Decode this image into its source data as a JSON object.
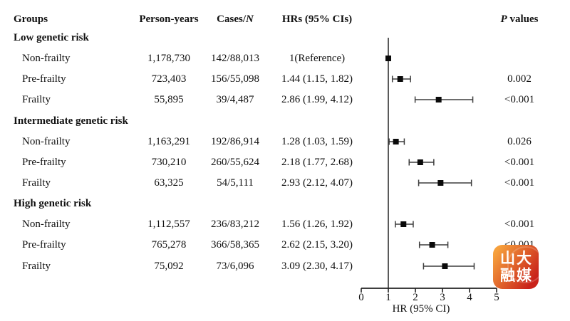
{
  "header": {
    "groups": "Groups",
    "person_years": "Person-years",
    "cases_parts": [
      "Cases/",
      "N"
    ],
    "hrs": "HRs (95% CIs)",
    "p_parts": [
      "P",
      " values"
    ]
  },
  "chart_data": {
    "type": "forest",
    "xlabel": "HR (95% CI)",
    "xlim": [
      0,
      5
    ],
    "xticks": [
      0,
      1,
      2,
      3,
      4,
      5
    ],
    "reference_line_x": 1,
    "groups": [
      {
        "label": "Low genetic risk",
        "rows": [
          {
            "label": "Non-frailty",
            "person_years": "1,178,730",
            "cases_n": "142/88,013",
            "hr_text": "1(Reference)",
            "hr": 1.0,
            "lo": null,
            "hi": null,
            "p": ""
          },
          {
            "label": "Pre-frailty",
            "person_years": "723,403",
            "cases_n": "156/55,098",
            "hr_text": "1.44 (1.15, 1.82)",
            "hr": 1.44,
            "lo": 1.15,
            "hi": 1.82,
            "p": "0.002"
          },
          {
            "label": "Frailty",
            "person_years": "55,895",
            "cases_n": "39/4,487",
            "hr_text": "2.86 (1.99, 4.12)",
            "hr": 2.86,
            "lo": 1.99,
            "hi": 4.12,
            "p": "<0.001"
          }
        ]
      },
      {
        "label": "Intermediate genetic risk",
        "rows": [
          {
            "label": "Non-frailty",
            "person_years": "1,163,291",
            "cases_n": "192/86,914",
            "hr_text": "1.28 (1.03, 1.59)",
            "hr": 1.28,
            "lo": 1.03,
            "hi": 1.59,
            "p": "0.026"
          },
          {
            "label": "Pre-frailty",
            "person_years": "730,210",
            "cases_n": "260/55,624",
            "hr_text": "2.18 (1.77, 2.68)",
            "hr": 2.18,
            "lo": 1.77,
            "hi": 2.68,
            "p": "<0.001"
          },
          {
            "label": "Frailty",
            "person_years": "63,325",
            "cases_n": "54/5,111",
            "hr_text": "2.93 (2.12, 4.07)",
            "hr": 2.93,
            "lo": 2.12,
            "hi": 4.07,
            "p": "<0.001"
          }
        ]
      },
      {
        "label": "High genetic risk",
        "rows": [
          {
            "label": "Non-frailty",
            "person_years": "1,112,557",
            "cases_n": "236/83,212",
            "hr_text": "1.56 (1.26, 1.92)",
            "hr": 1.56,
            "lo": 1.26,
            "hi": 1.92,
            "p": "<0.001"
          },
          {
            "label": "Pre-frailty",
            "person_years": "765,278",
            "cases_n": "366/58,365",
            "hr_text": "2.62 (2.15, 3.20)",
            "hr": 2.62,
            "lo": 2.15,
            "hi": 3.2,
            "p": "<0.001"
          },
          {
            "label": "Frailty",
            "person_years": "75,092",
            "cases_n": "73/6,096",
            "hr_text": "3.09 (2.30, 4.17)",
            "hr": 3.09,
            "lo": 2.3,
            "hi": 4.17,
            "p": ""
          }
        ]
      }
    ]
  },
  "watermark": {
    "line1": "山大",
    "line2": "融媒",
    "gradient_start": "#f6a03c",
    "gradient_end": "#c9231a"
  },
  "colors": {
    "text": "#111111",
    "line": "#3d3d3d",
    "marker": "#0a0a0a"
  }
}
